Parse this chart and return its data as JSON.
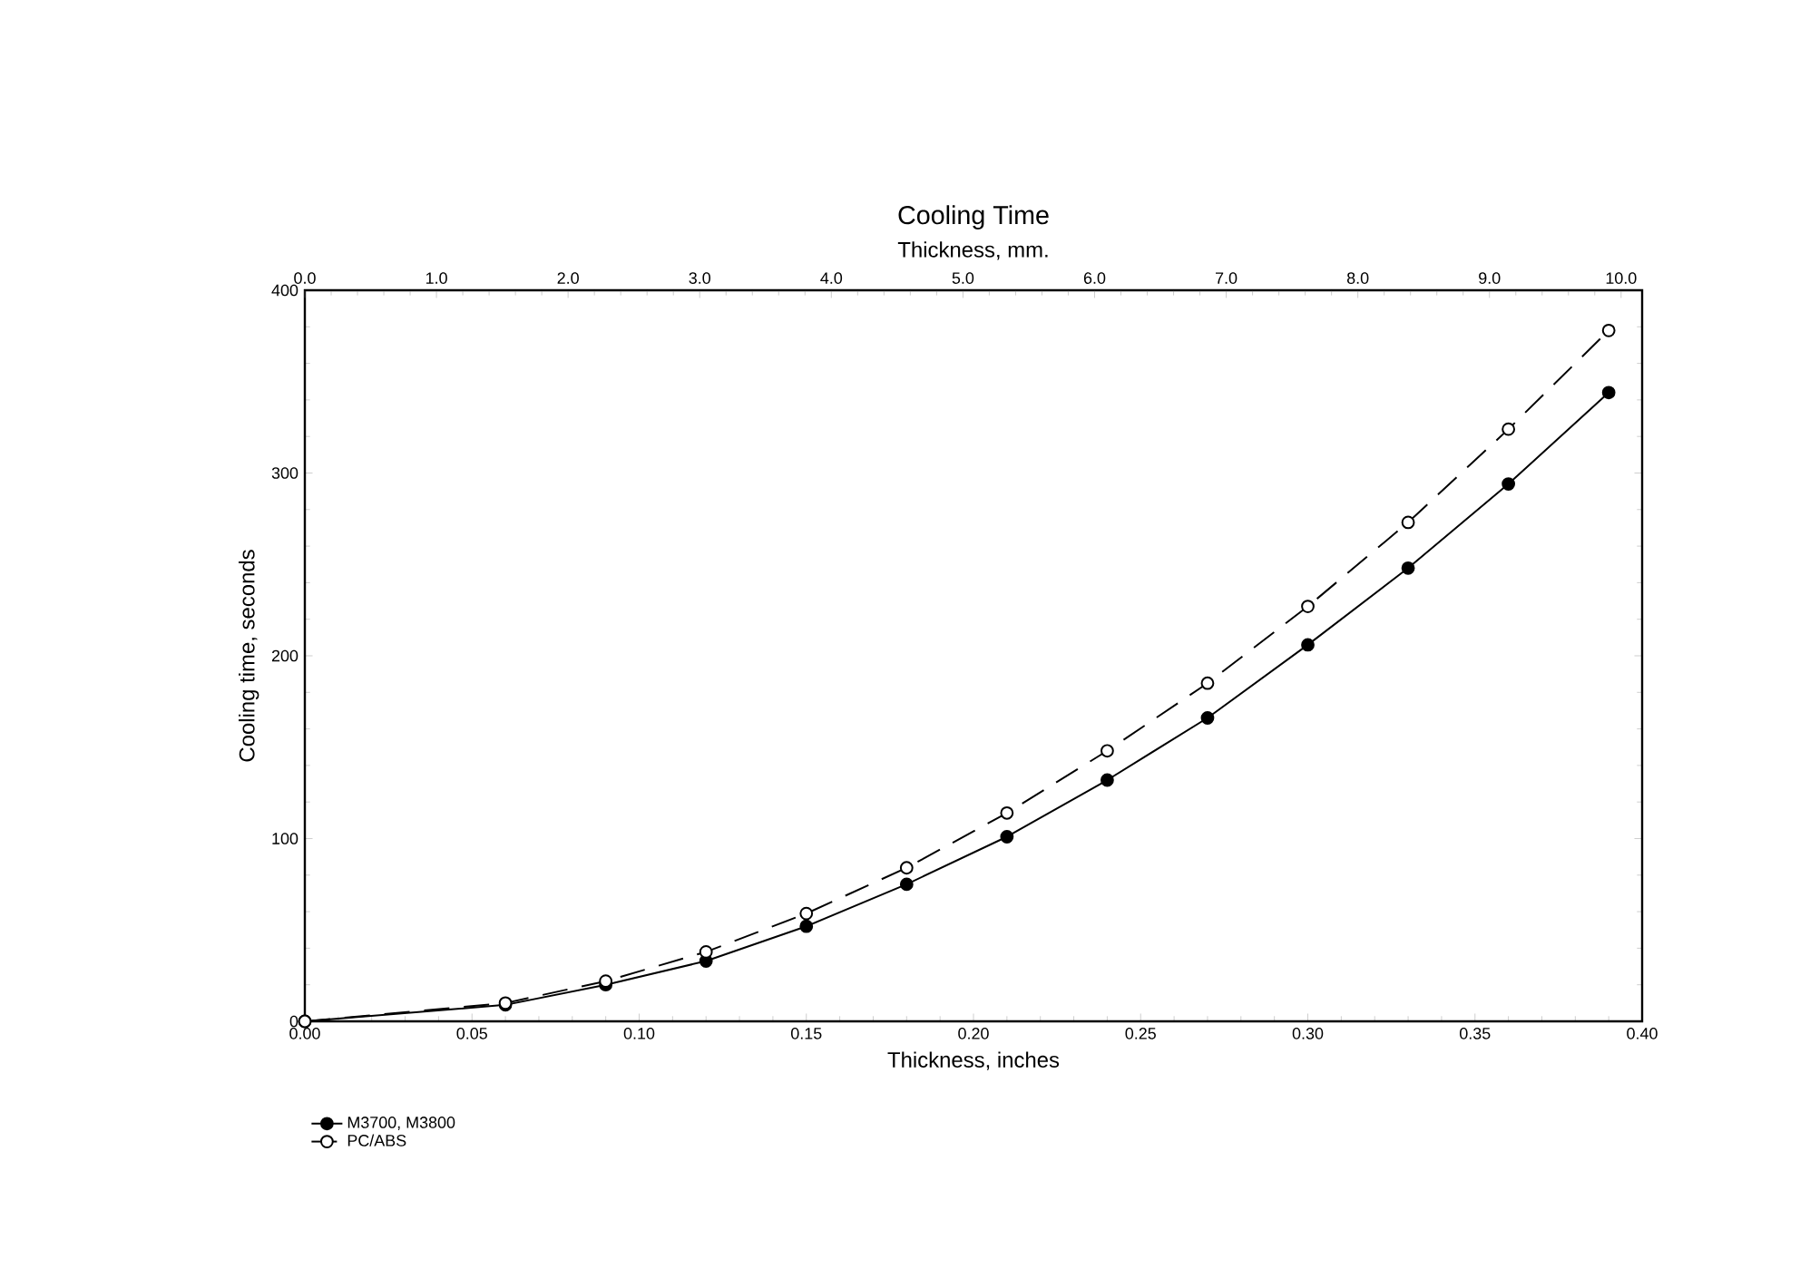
{
  "chart_data": {
    "type": "line",
    "title": "Cooling Time",
    "xlabel": "Thickness, inches",
    "ylabel": "Cooling time, seconds",
    "x2label": "Thickness, mm.",
    "x": [
      0,
      0.06,
      0.09,
      0.12,
      0.15,
      0.18,
      0.21,
      0.24,
      0.27,
      0.3,
      0.33,
      0.36,
      0.39
    ],
    "series": [
      {
        "name": "M3700, M3800",
        "color": "#000000",
        "line_style": "solid",
        "values": [
          0,
          9,
          20,
          33,
          52,
          75,
          101,
          132,
          166,
          206,
          248,
          294,
          344
        ]
      },
      {
        "name": "PC/ABS",
        "color": "#000000",
        "line_style": "dashed",
        "values": [
          0,
          10,
          22,
          38,
          59,
          84,
          114,
          148,
          185,
          227,
          273,
          324,
          378
        ]
      }
    ],
    "xlim": [
      0,
      0.4
    ],
    "ylim": [
      0,
      400
    ],
    "x2lim": [
      0,
      10.16
    ],
    "xticks": [
      {
        "value": 0,
        "label": "0.00"
      },
      {
        "value": 0.05,
        "label": "0.05"
      },
      {
        "value": 0.1,
        "label": "0.10"
      },
      {
        "value": 0.15,
        "label": "0.15"
      },
      {
        "value": 0.2,
        "label": "0.20"
      },
      {
        "value": 0.25,
        "label": "0.25"
      },
      {
        "value": 0.3,
        "label": "0.30"
      },
      {
        "value": 0.35,
        "label": "0.35"
      },
      {
        "value": 0.4,
        "label": "0.40"
      }
    ],
    "yticks": [
      0,
      100,
      200,
      300,
      400
    ],
    "x2ticks": [
      {
        "value": 0,
        "label": "0.0"
      },
      {
        "value": 1,
        "label": "1.0"
      },
      {
        "value": 2,
        "label": "2.0"
      },
      {
        "value": 3,
        "label": "3.0"
      },
      {
        "value": 4,
        "label": "4.0"
      },
      {
        "value": 5,
        "label": "5.0"
      },
      {
        "value": 6,
        "label": "6.0"
      },
      {
        "value": 7,
        "label": "7.0"
      },
      {
        "value": 8,
        "label": "8.0"
      },
      {
        "value": 9,
        "label": "9.0"
      },
      {
        "value": 10,
        "label": "10.0"
      }
    ],
    "marker": "circle",
    "legend": "bottom left",
    "grid": false
  }
}
